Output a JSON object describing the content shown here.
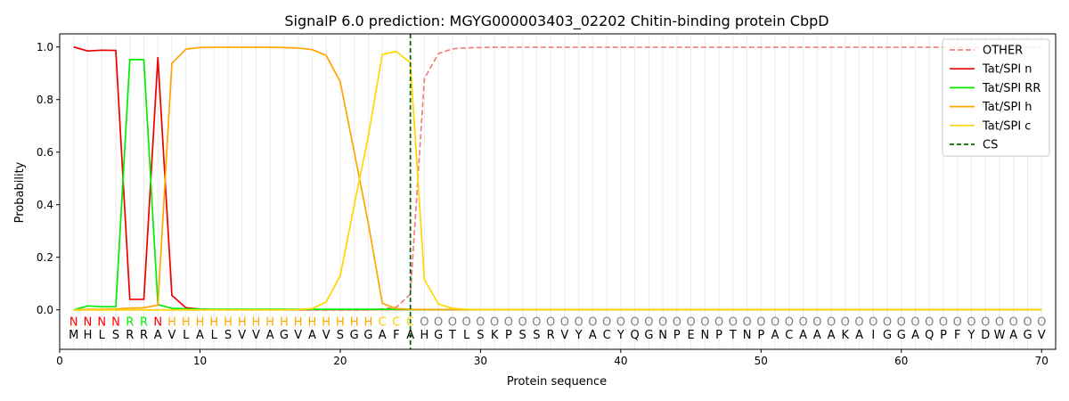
{
  "chart_data": {
    "type": "line",
    "title": "SignalP 6.0 prediction: MGYG000003403_02202 Chitin-binding protein CbpD",
    "xlabel": "Protein sequence",
    "ylabel": "Probability",
    "xlim": [
      0,
      71
    ],
    "ylim": [
      -0.15,
      1.05
    ],
    "x_ticks": [
      0,
      10,
      20,
      30,
      40,
      50,
      60,
      70
    ],
    "y_ticks": [
      0.0,
      0.2,
      0.4,
      0.6,
      0.8,
      1.0
    ],
    "grid": "vertical lines at each residue",
    "legend_position": "top-right",
    "sequence": "MHLSRRAVLALSVVAGVAVSGGAFAHGTLSKPSSRVYACYQGNPENPTNPACAAAKAIGGAQPFYDWAGV",
    "labels": "NNNNRRNHHHHHHHHHHHHHHHCCCOOOOOOOOOOOOOOOOOOOOOOOOOOOOOOOOOOOOOOOOOOOOO",
    "label_colors": {
      "N": "#ff0000",
      "R": "#00ee00",
      "H": "#ffa500",
      "C": "#ffd000",
      "O": "#808080"
    },
    "cleavage_site": 25,
    "series": [
      {
        "name": "OTHER",
        "color": "#f08080",
        "dash": true,
        "values": [
          0,
          0,
          0,
          0,
          0,
          0,
          0,
          0,
          0,
          0,
          0,
          0,
          0,
          0,
          0,
          0,
          0,
          0,
          0,
          0,
          0,
          0,
          0.004,
          0.01,
          0.06,
          0.88,
          0.975,
          0.993,
          0.997,
          0.998,
          0.999,
          0.999,
          0.999,
          0.999,
          0.999,
          0.999,
          0.999,
          0.999,
          0.999,
          0.999,
          0.999,
          0.999,
          0.999,
          0.999,
          0.999,
          0.999,
          0.999,
          0.999,
          0.999,
          0.999,
          0.999,
          0.999,
          0.999,
          0.999,
          0.999,
          0.999,
          0.999,
          0.999,
          0.999,
          0.999,
          0.999,
          0.999,
          0.999,
          0.999,
          0.999,
          0.999,
          0.999,
          0.999,
          0.999,
          0.999
        ]
      },
      {
        "name": "Tat/SPI n",
        "color": "#ee0000",
        "dash": false,
        "values": [
          1.0,
          0.985,
          0.988,
          0.987,
          0.04,
          0.04,
          0.96,
          0.055,
          0.008,
          0.003,
          0.001,
          0.001,
          0.001,
          0.001,
          0.001,
          0.001,
          0.001,
          0.001,
          0.001,
          0.001,
          0.001,
          0.001,
          0.001,
          0.001,
          0.001,
          0.001,
          0.001,
          0.001,
          0.001,
          0.001,
          0.001,
          0.001,
          0.001,
          0.001,
          0.001,
          0.001,
          0.001,
          0.001,
          0.001,
          0.001,
          0.001,
          0.001,
          0.001,
          0.001,
          0.001,
          0.001,
          0.001,
          0.001,
          0.001,
          0.001,
          0.001,
          0.001,
          0.001,
          0.001,
          0.001,
          0.001,
          0.001,
          0.001,
          0.001,
          0.001,
          0.001,
          0.001,
          0.001,
          0.001,
          0.001,
          0.001,
          0.001,
          0.001,
          0.001,
          0.001
        ]
      },
      {
        "name": "Tat/SPI RR",
        "color": "#00ee00",
        "dash": false,
        "values": [
          0.0,
          0.015,
          0.012,
          0.012,
          0.952,
          0.952,
          0.02,
          0.006,
          0.004,
          0.003,
          0.002,
          0.002,
          0.002,
          0.002,
          0.002,
          0.002,
          0.002,
          0.002,
          0.002,
          0.002,
          0.002,
          0.002,
          0.002,
          0.002,
          0.001,
          0.001,
          0.001,
          0.001,
          0.001,
          0.001,
          0.001,
          0.001,
          0.001,
          0.001,
          0.001,
          0.001,
          0.001,
          0.001,
          0.001,
          0.001,
          0.001,
          0.001,
          0.001,
          0.001,
          0.001,
          0.001,
          0.001,
          0.001,
          0.001,
          0.001,
          0.001,
          0.001,
          0.001,
          0.001,
          0.001,
          0.001,
          0.001,
          0.001,
          0.001,
          0.001,
          0.001,
          0.001,
          0.001,
          0.001,
          0.001,
          0.001,
          0.001,
          0.001,
          0.001,
          0.001
        ]
      },
      {
        "name": "Tat/SPI h",
        "color": "#ffa500",
        "dash": false,
        "values": [
          0.0,
          0.002,
          0.002,
          0.003,
          0.007,
          0.008,
          0.018,
          0.938,
          0.992,
          0.998,
          0.999,
          0.999,
          0.999,
          0.999,
          0.999,
          0.998,
          0.996,
          0.99,
          0.968,
          0.868,
          0.6,
          0.33,
          0.025,
          0.005,
          0.002,
          0.001,
          0.001,
          0.001,
          0.001,
          0.001,
          0.001,
          0.001,
          0.001,
          0.001,
          0.001,
          0.001,
          0.001,
          0.001,
          0.001,
          0.001,
          0.001,
          0.001,
          0.001,
          0.001,
          0.001,
          0.001,
          0.001,
          0.001,
          0.001,
          0.001,
          0.001,
          0.001,
          0.001,
          0.001,
          0.001,
          0.001,
          0.001,
          0.001,
          0.001,
          0.001,
          0.001,
          0.001,
          0.001,
          0.001,
          0.001,
          0.001,
          0.001,
          0.001,
          0.001,
          0.001
        ]
      },
      {
        "name": "Tat/SPI c",
        "color": "#ffd700",
        "dash": false,
        "values": [
          0,
          0,
          0,
          0,
          0,
          0,
          0,
          0,
          0,
          0,
          0,
          0,
          0,
          0,
          0,
          0,
          0.001,
          0.005,
          0.03,
          0.13,
          0.4,
          0.66,
          0.972,
          0.983,
          0.94,
          0.115,
          0.022,
          0.006,
          0.002,
          0.001,
          0.001,
          0.001,
          0.001,
          0.001,
          0.001,
          0.001,
          0.001,
          0.001,
          0.001,
          0.001,
          0.001,
          0.001,
          0.001,
          0.001,
          0.001,
          0.001,
          0.001,
          0.001,
          0.001,
          0.001,
          0.001,
          0.001,
          0.001,
          0.001,
          0.001,
          0.001,
          0.001,
          0.001,
          0.001,
          0.001,
          0.001,
          0.001,
          0.001,
          0.001,
          0.001,
          0.001,
          0.001,
          0.001,
          0.001,
          0.001
        ]
      }
    ],
    "cs_legend": {
      "name": "CS",
      "color": "#006400"
    }
  }
}
